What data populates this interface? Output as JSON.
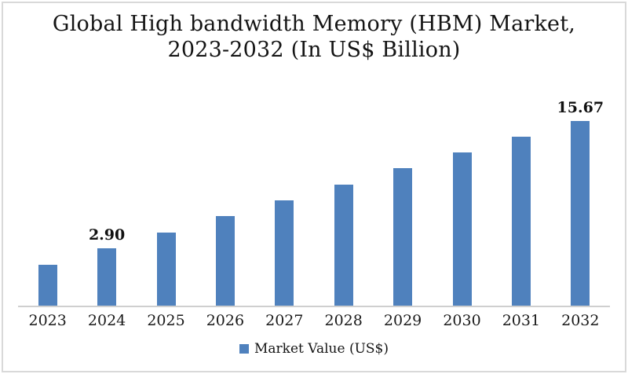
{
  "title": {
    "line1": "Global High bandwidth Memory (HBM) Market,",
    "line2": "2023-2032 (In US$ Billion)"
  },
  "legend": {
    "label": "Market Value (US$)"
  },
  "colors": {
    "bar": "#4f81bd",
    "axis_line": "#cfcfcf",
    "text": "#141414"
  },
  "chart_data": {
    "type": "bar",
    "title": "Global High bandwidth Memory (HBM) Market, 2023-2032 (In US$ Billion)",
    "xlabel": "",
    "ylabel": "",
    "categories": [
      "2023",
      "2024",
      "2025",
      "2026",
      "2027",
      "2028",
      "2029",
      "2030",
      "2031",
      "2032"
    ],
    "series": [
      {
        "name": "Market Value (US$)",
        "values": [
          1.25,
          2.9,
          4.5,
          6.1,
          7.7,
          9.3,
          10.9,
          12.5,
          14.1,
          15.67
        ]
      }
    ],
    "data_labels": {
      "2024": "2.90",
      "2032": "15.67"
    },
    "gridlines": false,
    "y_axis_visible": false,
    "legend_position": "bottom"
  }
}
